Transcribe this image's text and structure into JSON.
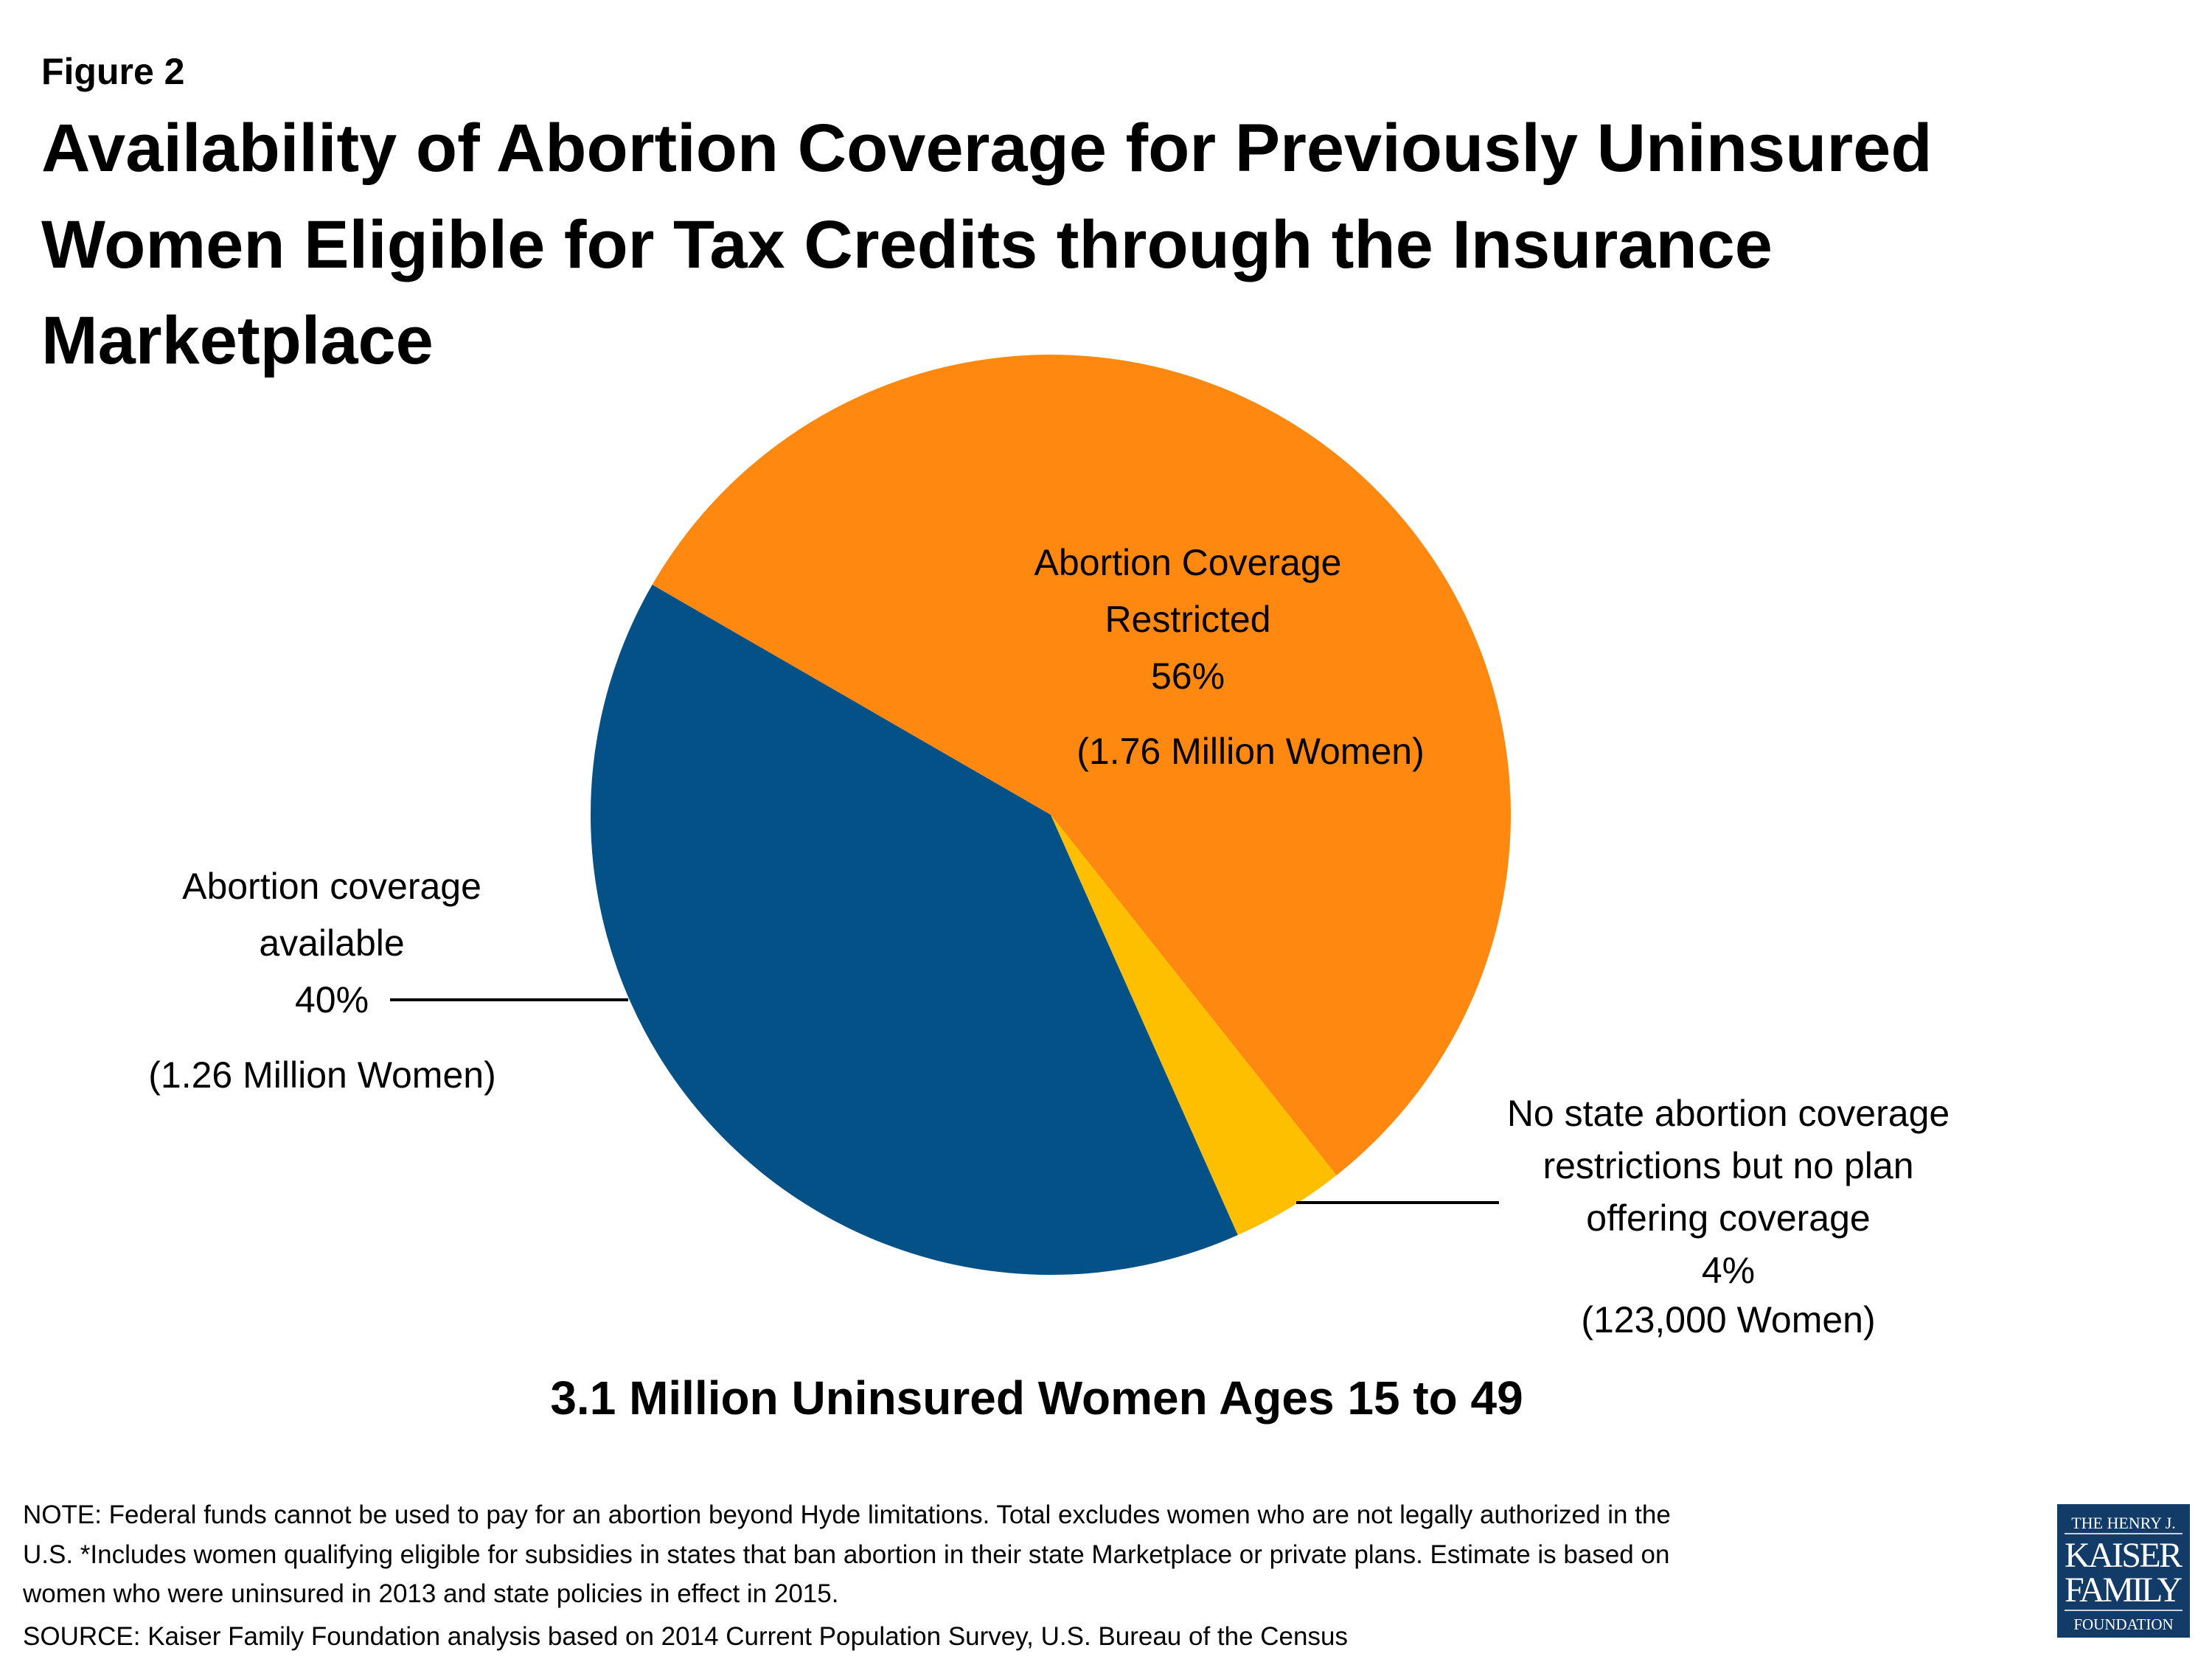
{
  "figure_label": "Figure 2",
  "title_lines": [
    "Availability of Abortion Coverage for Previously Uninsured",
    "Women Eligible for Tax Credits through the Insurance",
    "Marketplace"
  ],
  "chart_data": {
    "type": "pie",
    "subtitle": "3.1 Million Uninsured Women Ages 15 to 49",
    "slices": [
      {
        "label_lines": [
          "Abortion Coverage",
          "Restricted"
        ],
        "percent_label": "56%",
        "count_label": "(1.76 Million Women)",
        "value": 56,
        "color": "#FF8811"
      },
      {
        "label_lines": [
          "No state abortion coverage",
          "restrictions but no plan",
          "offering coverage"
        ],
        "percent_label": "4%",
        "count_label": "(123,000 Women)",
        "value": 4,
        "color": "#FDBF00"
      },
      {
        "label_lines": [
          "Abortion coverage",
          "available"
        ],
        "percent_label": "40%",
        "count_label": "(1.26 Million Women)",
        "value": 40,
        "color": "#045187"
      }
    ]
  },
  "notes": [
    "NOTE: Federal funds cannot be used to pay for an abortion beyond Hyde limitations. Total excludes women who are not legally authorized in the",
    "U.S.  *Includes women qualifying eligible for subsidies in states that ban abortion in their state Marketplace or private plans. Estimate is based on",
    "women who were uninsured in 2013 and state policies in effect in 2015.",
    "SOURCE: Kaiser Family Foundation analysis based on  2014 Current Population Survey, U.S. Bureau of the Census"
  ],
  "logo": {
    "lines": [
      "THE HENRY J.",
      "KAISER",
      "FAMILY",
      "FOUNDATION"
    ],
    "color": "#133B67"
  }
}
